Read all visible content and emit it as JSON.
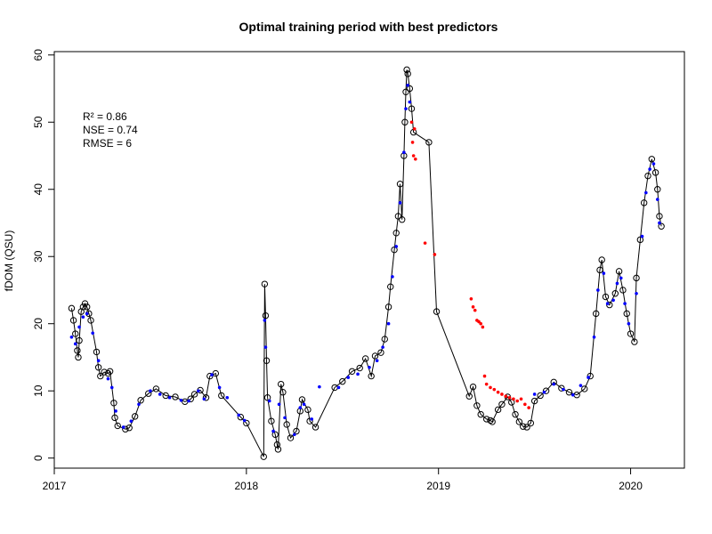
{
  "chart_data": {
    "type": "scatter",
    "title": "Optimal training period with best predictors",
    "xlabel": "",
    "ylabel": "fDOM (QSU)",
    "xlim": [
      2017.0,
      2020.28
    ],
    "ylim": [
      -1.5,
      60.5
    ],
    "x_ticks": [
      2017,
      2018,
      2019,
      2020
    ],
    "x_tick_labels": [
      "2017",
      "2018",
      "2019",
      "2020"
    ],
    "y_ticks": [
      0,
      10,
      20,
      30,
      40,
      50,
      60
    ],
    "y_tick_labels": [
      "0",
      "10",
      "20",
      "30",
      "40",
      "50",
      "60"
    ],
    "grid": false,
    "annotations": [
      "R² = 0.86",
      "NSE = 0.74",
      "RMSE = 6"
    ],
    "observed_points": [
      [
        2017.09,
        22.3
      ],
      [
        2017.1,
        20.5
      ],
      [
        2017.11,
        18.5
      ],
      [
        2017.12,
        16.0
      ],
      [
        2017.125,
        15.0
      ],
      [
        2017.13,
        17.5
      ],
      [
        2017.14,
        21.8
      ],
      [
        2017.15,
        22.5
      ],
      [
        2017.16,
        23.0
      ],
      [
        2017.17,
        22.5
      ],
      [
        2017.18,
        21.5
      ],
      [
        2017.19,
        20.5
      ],
      [
        2017.22,
        15.8
      ],
      [
        2017.23,
        13.5
      ],
      [
        2017.24,
        12.2
      ],
      [
        2017.26,
        12.8
      ],
      [
        2017.28,
        12.6
      ],
      [
        2017.29,
        12.9
      ],
      [
        2017.31,
        8.2
      ],
      [
        2017.315,
        6.0
      ],
      [
        2017.33,
        4.8
      ],
      [
        2017.37,
        4.3
      ],
      [
        2017.39,
        4.5
      ],
      [
        2017.42,
        6.2
      ],
      [
        2017.45,
        8.6
      ],
      [
        2017.49,
        9.6
      ],
      [
        2017.53,
        10.3
      ],
      [
        2017.58,
        9.3
      ],
      [
        2017.63,
        9.1
      ],
      [
        2017.68,
        8.4
      ],
      [
        2017.71,
        8.8
      ],
      [
        2017.73,
        9.5
      ],
      [
        2017.76,
        10.1
      ],
      [
        2017.79,
        9.0
      ],
      [
        2017.81,
        12.2
      ],
      [
        2017.84,
        12.6
      ],
      [
        2017.87,
        9.3
      ],
      [
        2017.97,
        6.1
      ],
      [
        2018.0,
        5.2
      ],
      [
        2018.09,
        0.2
      ],
      [
        2018.095,
        25.9
      ],
      [
        2018.1,
        21.2
      ],
      [
        2018.105,
        14.5
      ],
      [
        2018.11,
        9.0
      ],
      [
        2018.13,
        5.5
      ],
      [
        2018.15,
        3.5
      ],
      [
        2018.16,
        2.0
      ],
      [
        2018.165,
        1.3
      ],
      [
        2018.18,
        11.0
      ],
      [
        2018.19,
        9.8
      ],
      [
        2018.21,
        5.0
      ],
      [
        2018.23,
        3.0
      ],
      [
        2018.26,
        4.0
      ],
      [
        2018.28,
        7.0
      ],
      [
        2018.29,
        8.7
      ],
      [
        2018.32,
        7.2
      ],
      [
        2018.33,
        5.5
      ],
      [
        2018.36,
        4.6
      ],
      [
        2018.46,
        10.5
      ],
      [
        2018.5,
        11.4
      ],
      [
        2018.55,
        12.9
      ],
      [
        2018.59,
        13.4
      ],
      [
        2018.62,
        14.8
      ],
      [
        2018.65,
        12.2
      ],
      [
        2018.67,
        15.2
      ],
      [
        2018.7,
        15.7
      ],
      [
        2018.72,
        17.7
      ],
      [
        2018.74,
        22.5
      ],
      [
        2018.75,
        25.5
      ],
      [
        2018.77,
        31.0
      ],
      [
        2018.78,
        33.5
      ],
      [
        2018.79,
        36.0
      ],
      [
        2018.8,
        40.8
      ],
      [
        2018.81,
        35.5
      ],
      [
        2018.82,
        45.0
      ],
      [
        2018.825,
        50.0
      ],
      [
        2018.83,
        54.5
      ],
      [
        2018.835,
        57.8
      ],
      [
        2018.84,
        57.2
      ],
      [
        2018.85,
        55.0
      ],
      [
        2018.86,
        52.0
      ],
      [
        2018.87,
        48.5
      ],
      [
        2018.95,
        47.0
      ],
      [
        2018.99,
        21.8
      ],
      [
        2019.16,
        9.2
      ],
      [
        2019.18,
        10.6
      ],
      [
        2019.2,
        7.8
      ],
      [
        2019.22,
        6.5
      ],
      [
        2019.25,
        5.8
      ],
      [
        2019.27,
        5.6
      ],
      [
        2019.28,
        5.4
      ],
      [
        2019.31,
        7.2
      ],
      [
        2019.33,
        8.0
      ],
      [
        2019.36,
        9.1
      ],
      [
        2019.38,
        8.3
      ],
      [
        2019.4,
        6.5
      ],
      [
        2019.42,
        5.4
      ],
      [
        2019.44,
        4.7
      ],
      [
        2019.46,
        4.6
      ],
      [
        2019.48,
        5.2
      ],
      [
        2019.5,
        8.5
      ],
      [
        2019.53,
        9.3
      ],
      [
        2019.56,
        10.0
      ],
      [
        2019.6,
        11.3
      ],
      [
        2019.64,
        10.4
      ],
      [
        2019.68,
        9.8
      ],
      [
        2019.72,
        9.4
      ],
      [
        2019.76,
        10.3
      ],
      [
        2019.79,
        12.2
      ],
      [
        2019.82,
        21.5
      ],
      [
        2019.84,
        28.0
      ],
      [
        2019.85,
        29.5
      ],
      [
        2019.87,
        24.0
      ],
      [
        2019.89,
        22.8
      ],
      [
        2019.92,
        24.5
      ],
      [
        2019.94,
        27.8
      ],
      [
        2019.96,
        25.0
      ],
      [
        2019.98,
        21.5
      ],
      [
        2020.0,
        18.5
      ],
      [
        2020.02,
        17.3
      ],
      [
        2020.03,
        26.8
      ],
      [
        2020.05,
        32.5
      ],
      [
        2020.07,
        38.0
      ],
      [
        2020.09,
        42.0
      ],
      [
        2020.11,
        44.5
      ],
      [
        2020.13,
        42.5
      ],
      [
        2020.14,
        40.0
      ],
      [
        2020.15,
        36.0
      ],
      [
        2020.16,
        34.5
      ]
    ],
    "predicted_train_points": [
      [
        2017.09,
        18.0
      ],
      [
        2017.11,
        17.0
      ],
      [
        2017.13,
        19.5
      ],
      [
        2017.15,
        21.0
      ],
      [
        2017.17,
        21.5
      ],
      [
        2017.2,
        18.6
      ],
      [
        2017.23,
        14.5
      ],
      [
        2017.28,
        11.8
      ],
      [
        2017.3,
        10.5
      ],
      [
        2017.32,
        7.0
      ],
      [
        2017.36,
        4.6
      ],
      [
        2017.4,
        5.5
      ],
      [
        2017.44,
        8.0
      ],
      [
        2017.5,
        10.0
      ],
      [
        2017.55,
        9.5
      ],
      [
        2017.6,
        9.0
      ],
      [
        2017.66,
        8.6
      ],
      [
        2017.7,
        8.5
      ],
      [
        2017.75,
        10.0
      ],
      [
        2017.78,
        8.8
      ],
      [
        2017.82,
        12.4
      ],
      [
        2017.86,
        10.5
      ],
      [
        2017.9,
        9.0
      ],
      [
        2017.96,
        6.4
      ],
      [
        2017.99,
        5.6
      ],
      [
        2018.095,
        20.5
      ],
      [
        2018.1,
        16.5
      ],
      [
        2018.12,
        8.5
      ],
      [
        2018.14,
        4.0
      ],
      [
        2018.17,
        8.0
      ],
      [
        2018.2,
        6.0
      ],
      [
        2018.25,
        3.5
      ],
      [
        2018.28,
        7.5
      ],
      [
        2018.3,
        8.0
      ],
      [
        2018.34,
        5.8
      ],
      [
        2018.38,
        10.6
      ],
      [
        2018.48,
        10.5
      ],
      [
        2018.53,
        12.0
      ],
      [
        2018.58,
        12.5
      ],
      [
        2018.64,
        13.5
      ],
      [
        2018.68,
        14.5
      ],
      [
        2018.71,
        16.5
      ],
      [
        2018.74,
        20.0
      ],
      [
        2018.76,
        27.0
      ],
      [
        2018.78,
        31.5
      ],
      [
        2018.8,
        38.0
      ],
      [
        2018.82,
        45.5
      ],
      [
        2018.83,
        52.0
      ],
      [
        2018.84,
        55.5
      ],
      [
        2018.85,
        53.0
      ],
      [
        2019.5,
        9.5
      ],
      [
        2019.55,
        9.8
      ],
      [
        2019.6,
        11.0
      ],
      [
        2019.65,
        10.2
      ],
      [
        2019.7,
        9.4
      ],
      [
        2019.74,
        10.8
      ],
      [
        2019.78,
        12.0
      ],
      [
        2019.81,
        18.0
      ],
      [
        2019.83,
        25.0
      ],
      [
        2019.86,
        27.5
      ],
      [
        2019.88,
        23.0
      ],
      [
        2019.91,
        23.5
      ],
      [
        2019.93,
        26.0
      ],
      [
        2019.95,
        26.8
      ],
      [
        2019.97,
        23.0
      ],
      [
        2019.99,
        20.0
      ],
      [
        2020.03,
        24.5
      ],
      [
        2020.06,
        33.0
      ],
      [
        2020.08,
        39.5
      ],
      [
        2020.1,
        43.0
      ],
      [
        2020.12,
        43.8
      ],
      [
        2020.14,
        38.5
      ],
      [
        2020.15,
        35.0
      ]
    ],
    "predicted_test_points": [
      [
        2018.86,
        50.0
      ],
      [
        2018.865,
        47.0
      ],
      [
        2018.87,
        45.0
      ],
      [
        2018.875,
        49.0
      ],
      [
        2018.88,
        44.5
      ],
      [
        2018.93,
        32.0
      ],
      [
        2018.98,
        30.3
      ],
      [
        2019.17,
        23.7
      ],
      [
        2019.18,
        22.5
      ],
      [
        2019.19,
        22.0
      ],
      [
        2019.2,
        20.5
      ],
      [
        2019.21,
        20.3
      ],
      [
        2019.22,
        20.0
      ],
      [
        2019.23,
        19.5
      ],
      [
        2019.24,
        12.2
      ],
      [
        2019.25,
        11.0
      ],
      [
        2019.27,
        10.5
      ],
      [
        2019.29,
        10.2
      ],
      [
        2019.31,
        9.8
      ],
      [
        2019.33,
        9.5
      ],
      [
        2019.35,
        9.2
      ],
      [
        2019.37,
        9.0
      ],
      [
        2019.39,
        8.8
      ],
      [
        2019.41,
        8.5
      ],
      [
        2019.43,
        8.8
      ],
      [
        2019.45,
        8.0
      ],
      [
        2019.47,
        7.5
      ]
    ],
    "colors": {
      "observed": "#000000",
      "predicted_train": "#0000ff",
      "predicted_test": "#ff0000",
      "line": "#000000"
    }
  }
}
